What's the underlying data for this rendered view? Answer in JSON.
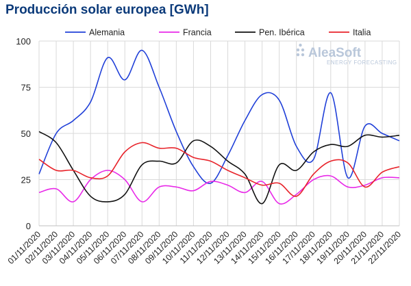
{
  "chart_data": {
    "type": "line",
    "title": "Producción solar europea [GWh]",
    "xlabel": "",
    "ylabel": "",
    "ylim": [
      0,
      100
    ],
    "yticks": [
      0,
      25,
      50,
      75,
      100
    ],
    "grid": true,
    "legend_position": "top",
    "categories": [
      "01/11/2020",
      "02/11/2020",
      "03/11/2020",
      "04/11/2020",
      "05/11/2020",
      "06/11/2020",
      "07/11/2020",
      "08/11/2020",
      "09/11/2020",
      "10/11/2020",
      "11/11/2020",
      "12/11/2020",
      "13/11/2020",
      "14/11/2020",
      "15/11/2020",
      "16/11/2020",
      "17/11/2020",
      "18/11/2020",
      "19/11/2020",
      "20/11/2020",
      "21/11/2020",
      "22/11/2020"
    ],
    "series": [
      {
        "name": "Alemania",
        "color": "#1f3fd8",
        "values": [
          28,
          50,
          57,
          67,
          91,
          79,
          95,
          75,
          51,
          32,
          23,
          38,
          57,
          71,
          68,
          43,
          36,
          72,
          26,
          54,
          50,
          46
        ]
      },
      {
        "name": "Francia",
        "color": "#e829e8",
        "values": [
          18,
          20,
          13,
          25,
          30,
          25,
          13,
          21,
          21,
          19,
          24,
          22,
          18,
          24,
          12,
          17,
          25,
          27,
          21,
          22,
          26,
          26
        ]
      },
      {
        "name": "Pen. Ibérica",
        "color": "#111111",
        "values": [
          51,
          45,
          30,
          16,
          13,
          17,
          33,
          35,
          34,
          46,
          43,
          35,
          28,
          12,
          33,
          30,
          40,
          44,
          43,
          49,
          48,
          49
        ]
      },
      {
        "name": "Italia",
        "color": "#e8232a",
        "values": [
          36,
          30,
          30,
          26,
          27,
          40,
          45,
          42,
          42,
          37,
          35,
          30,
          26,
          22,
          23,
          16,
          28,
          35,
          34,
          21,
          29,
          32
        ]
      }
    ]
  },
  "logo": {
    "name": "AleaSoft",
    "subtitle": "ENERGY FORECASTING"
  }
}
